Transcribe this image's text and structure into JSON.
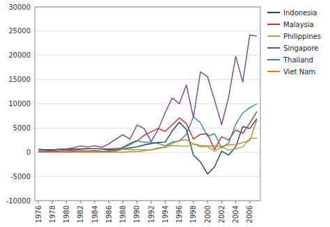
{
  "chart_data": {
    "type": "line",
    "x": [
      1976,
      1977,
      1978,
      1979,
      1980,
      1981,
      1982,
      1983,
      1984,
      1985,
      1986,
      1987,
      1988,
      1989,
      1990,
      1991,
      1992,
      1993,
      1994,
      1995,
      1996,
      1997,
      1998,
      1999,
      2000,
      2001,
      2002,
      2003,
      2004,
      2005,
      2006,
      2007
    ],
    "series": [
      {
        "name": "Indonesia",
        "color": "#1f3f6e",
        "values": [
          600,
          500,
          500,
          600,
          600,
          600,
          700,
          750,
          700,
          650,
          500,
          500,
          600,
          900,
          1100,
          1500,
          1800,
          2000,
          2100,
          4400,
          6200,
          4700,
          -600,
          -2000,
          -4500,
          -3000,
          200,
          -600,
          1100,
          5300,
          4900,
          6900
        ]
      },
      {
        "name": "Malaysia",
        "color": "#c0312d",
        "values": [
          50,
          100,
          250,
          300,
          400,
          500,
          600,
          700,
          700,
          700,
          700,
          800,
          800,
          1600,
          2300,
          3500,
          4200,
          4900,
          4300,
          5700,
          7100,
          5900,
          2700,
          3700,
          3800,
          550,
          3200,
          2500,
          4600,
          3900,
          6000,
          8400
        ]
      },
      {
        "name": "Philippines",
        "color": "#7ab648",
        "values": [
          100,
          100,
          100,
          50,
          50,
          100,
          100,
          100,
          100,
          100,
          100,
          200,
          600,
          500,
          500,
          500,
          500,
          700,
          1100,
          1400,
          1300,
          1200,
          1700,
          1100,
          1200,
          200,
          1100,
          450,
          700,
          1100,
          2800,
          2900
        ]
      },
      {
        "name": "Singapore",
        "color": "#7b3f96",
        "values": [
          300,
          300,
          400,
          600,
          700,
          900,
          1300,
          1100,
          1300,
          1000,
          1700,
          2700,
          3600,
          2700,
          5600,
          4900,
          2200,
          4700,
          8200,
          11200,
          10000,
          13900,
          7200,
          16600,
          15600,
          10800,
          5700,
          11400,
          19800,
          14500,
          24200,
          24000
        ]
      },
      {
        "name": "Thailand",
        "color": "#2e8b8b",
        "values": [
          50,
          50,
          50,
          50,
          100,
          250,
          300,
          300,
          350,
          150,
          250,
          350,
          1100,
          1800,
          2400,
          2000,
          2100,
          1800,
          1300,
          2100,
          2300,
          3700,
          7300,
          6100,
          3300,
          3800,
          900,
          1900,
          5800,
          8100,
          9200,
          10000
        ]
      },
      {
        "name": "Viet Nam",
        "color": "#d97c28",
        "values": [
          0,
          0,
          0,
          0,
          0,
          0,
          0,
          0,
          0,
          0,
          0,
          0,
          0,
          100,
          100,
          300,
          500,
          900,
          1000,
          1800,
          2400,
          2600,
          1700,
          1400,
          1300,
          1300,
          1200,
          1500,
          1600,
          2000,
          2400,
          6700
        ]
      }
    ],
    "xlim": [
      1975.5,
      2007.5
    ],
    "xticks": [
      1976,
      1978,
      1980,
      1982,
      1984,
      1986,
      1988,
      1990,
      1992,
      1994,
      1996,
      1998,
      2000,
      2002,
      2004,
      2006
    ],
    "ylim": [
      -10000,
      30000
    ],
    "yticks": [
      -10000,
      -5000,
      0,
      5000,
      10000,
      15000,
      20000,
      25000,
      30000
    ],
    "grid": true,
    "legend": "right"
  }
}
